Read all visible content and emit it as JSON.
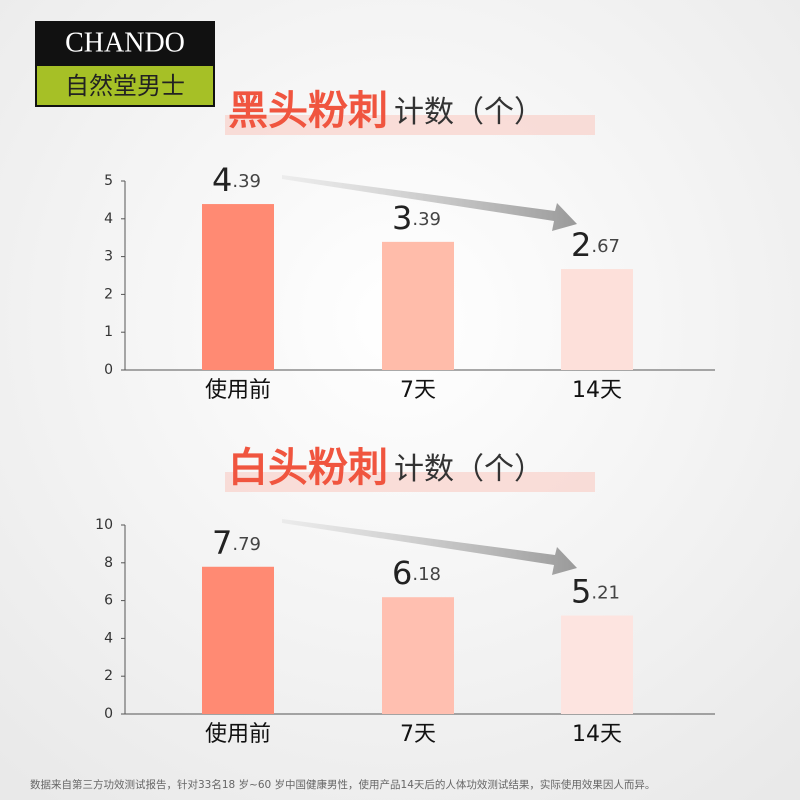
{
  "brand": {
    "name": "CHANDO",
    "subtitle": "自然堂男士"
  },
  "chart_data": [
    {
      "type": "bar",
      "title": [
        "黑头粉刺",
        "计数（个）"
      ],
      "categories": [
        "使用前",
        "7天",
        "14天"
      ],
      "values": [
        4.39,
        3.39,
        2.67
      ],
      "colors": [
        "#ff8a73",
        "#ffbcaa",
        "#fde0da"
      ],
      "ylim": [
        0,
        5
      ],
      "yticks": [
        0,
        1,
        2,
        3,
        4,
        5
      ]
    },
    {
      "type": "bar",
      "title": [
        "白头粉刺",
        "计数（个）"
      ],
      "categories": [
        "使用前",
        "7天",
        "14天"
      ],
      "values": [
        7.79,
        6.18,
        5.21
      ],
      "colors": [
        "#ff8a73",
        "#ffbfb0",
        "#fde4e0"
      ],
      "ylim": [
        0,
        10
      ],
      "yticks": [
        0,
        2,
        4,
        6,
        8,
        10
      ]
    }
  ],
  "footnote": "数据来自第三方功效测试报告，针对33名18 岁~60 岁中国健康男性，使用产品14天后的人体功效测试结果，实际使用效果因人而异。"
}
